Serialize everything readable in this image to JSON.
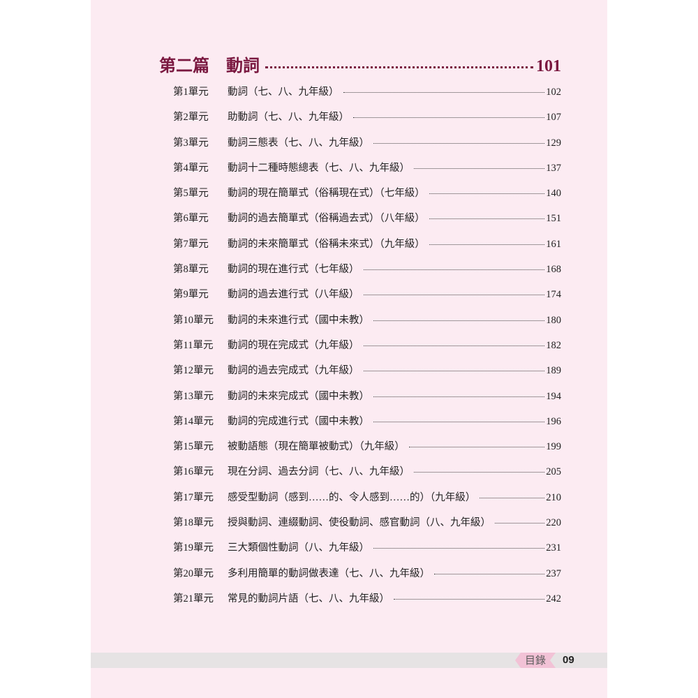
{
  "part": {
    "label": "第二篇",
    "title": "動詞",
    "page": "101"
  },
  "entries": [
    {
      "unit": "第1單元",
      "title": "動詞（七、八、九年級）",
      "page": "102"
    },
    {
      "unit": "第2單元",
      "title": "助動詞（七、八、九年級）",
      "page": "107"
    },
    {
      "unit": "第3單元",
      "title": "動詞三態表（七、八、九年級）",
      "page": "129"
    },
    {
      "unit": "第4單元",
      "title": "動詞十二種時態總表（七、八、九年級）",
      "page": "137"
    },
    {
      "unit": "第5單元",
      "title": "動詞的現在簡單式（俗稱現在式）（七年級）",
      "page": "140"
    },
    {
      "unit": "第6單元",
      "title": "動詞的過去簡單式（俗稱過去式）（八年級）",
      "page": "151"
    },
    {
      "unit": "第7單元",
      "title": "動詞的未來簡單式（俗稱未來式）（九年級）",
      "page": "161"
    },
    {
      "unit": "第8單元",
      "title": "動詞的現在進行式（七年級）",
      "page": "168"
    },
    {
      "unit": "第9單元",
      "title": "動詞的過去進行式（八年級）",
      "page": "174"
    },
    {
      "unit": "第10單元",
      "title": "動詞的未來進行式（國中未教）",
      "page": "180"
    },
    {
      "unit": "第11單元",
      "title": "動詞的現在完成式（九年級）",
      "page": "182"
    },
    {
      "unit": "第12單元",
      "title": "動詞的過去完成式（九年級）",
      "page": "189"
    },
    {
      "unit": "第13單元",
      "title": "動詞的未來完成式（國中未教）",
      "page": "194"
    },
    {
      "unit": "第14單元",
      "title": "動詞的完成進行式（國中未教）",
      "page": "196"
    },
    {
      "unit": "第15單元",
      "title": "被動語態（現在簡單被動式）（九年級）",
      "page": "199"
    },
    {
      "unit": "第16單元",
      "title": "現在分詞、過去分詞（七、八、九年級）",
      "page": "205"
    },
    {
      "unit": "第17單元",
      "title": "感受型動詞（感到……的、令人感到……的）（九年級）",
      "page": "210"
    },
    {
      "unit": "第18單元",
      "title": "授與動詞、連綴動詞、使役動詞、感官動詞（八、九年級）",
      "page": "220"
    },
    {
      "unit": "第19單元",
      "title": "三大類個性動詞（八、九年級）",
      "page": "231"
    },
    {
      "unit": "第20單元",
      "title": "多利用簡單的動詞做表達（七、八、九年級）",
      "page": "237"
    },
    {
      "unit": "第21單元",
      "title": "常見的動詞片語（七、八、九年級）",
      "page": "242"
    }
  ],
  "footer": {
    "section": "目錄",
    "page_number": "09"
  },
  "colors": {
    "accent": "#7a1840",
    "page_bg": "#fcebf2",
    "tab": "#f2c2d6"
  }
}
